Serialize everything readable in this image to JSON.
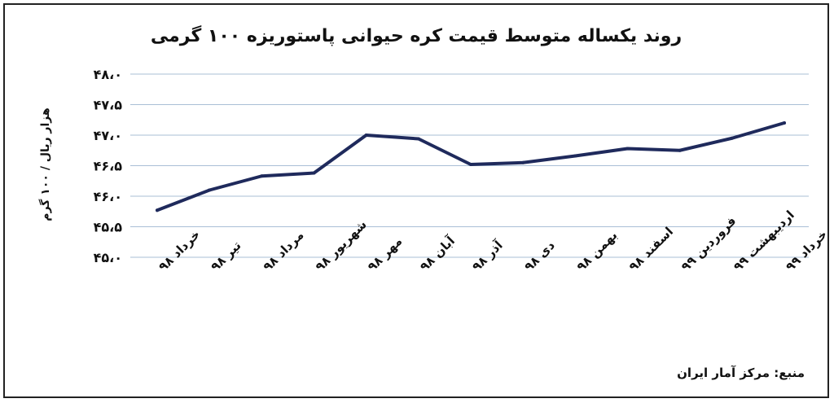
{
  "chart_data": {
    "type": "line",
    "title": "روند یکساله متوسط قیمت کره حیوانی پاستوریزه ۱۰۰ گرمی",
    "ylabel": "هزار ریال / ۱۰۰ گرم",
    "xlabel": "",
    "ylim": [
      45.0,
      48.0
    ],
    "yticks": [
      {
        "value": 48.0,
        "label": "۴۸،۰"
      },
      {
        "value": 47.5,
        "label": "۴۷،۵"
      },
      {
        "value": 47.0,
        "label": "۴۷،۰"
      },
      {
        "value": 46.5,
        "label": "۴۶،۵"
      },
      {
        "value": 46.0,
        "label": "۴۶،۰"
      },
      {
        "value": 45.5,
        "label": "۴۵،۵"
      },
      {
        "value": 45.0,
        "label": "۴۵،۰"
      }
    ],
    "grid": true,
    "categories": [
      "خرداد ۹۸",
      "تیر ۹۸",
      "مرداد ۹۸",
      "شهریور ۹۸",
      "مهر ۹۸",
      "آبان ۹۸",
      "آذر ۹۸",
      "دی ۹۸",
      "بهمن ۹۸",
      "اسفند ۹۸",
      "فروردین ۹۹",
      "اردیبهشت ۹۹",
      "خرداد ۹۹"
    ],
    "series": [
      {
        "values": [
          45.77,
          46.1,
          46.33,
          46.38,
          47.0,
          46.94,
          46.52,
          46.55,
          46.66,
          46.78,
          46.75,
          46.95,
          47.2
        ]
      }
    ],
    "colors": {
      "line": "#1f2a5c",
      "grid": "#a9bfd6"
    }
  },
  "source": "منبع: مرکز آمار ایران"
}
